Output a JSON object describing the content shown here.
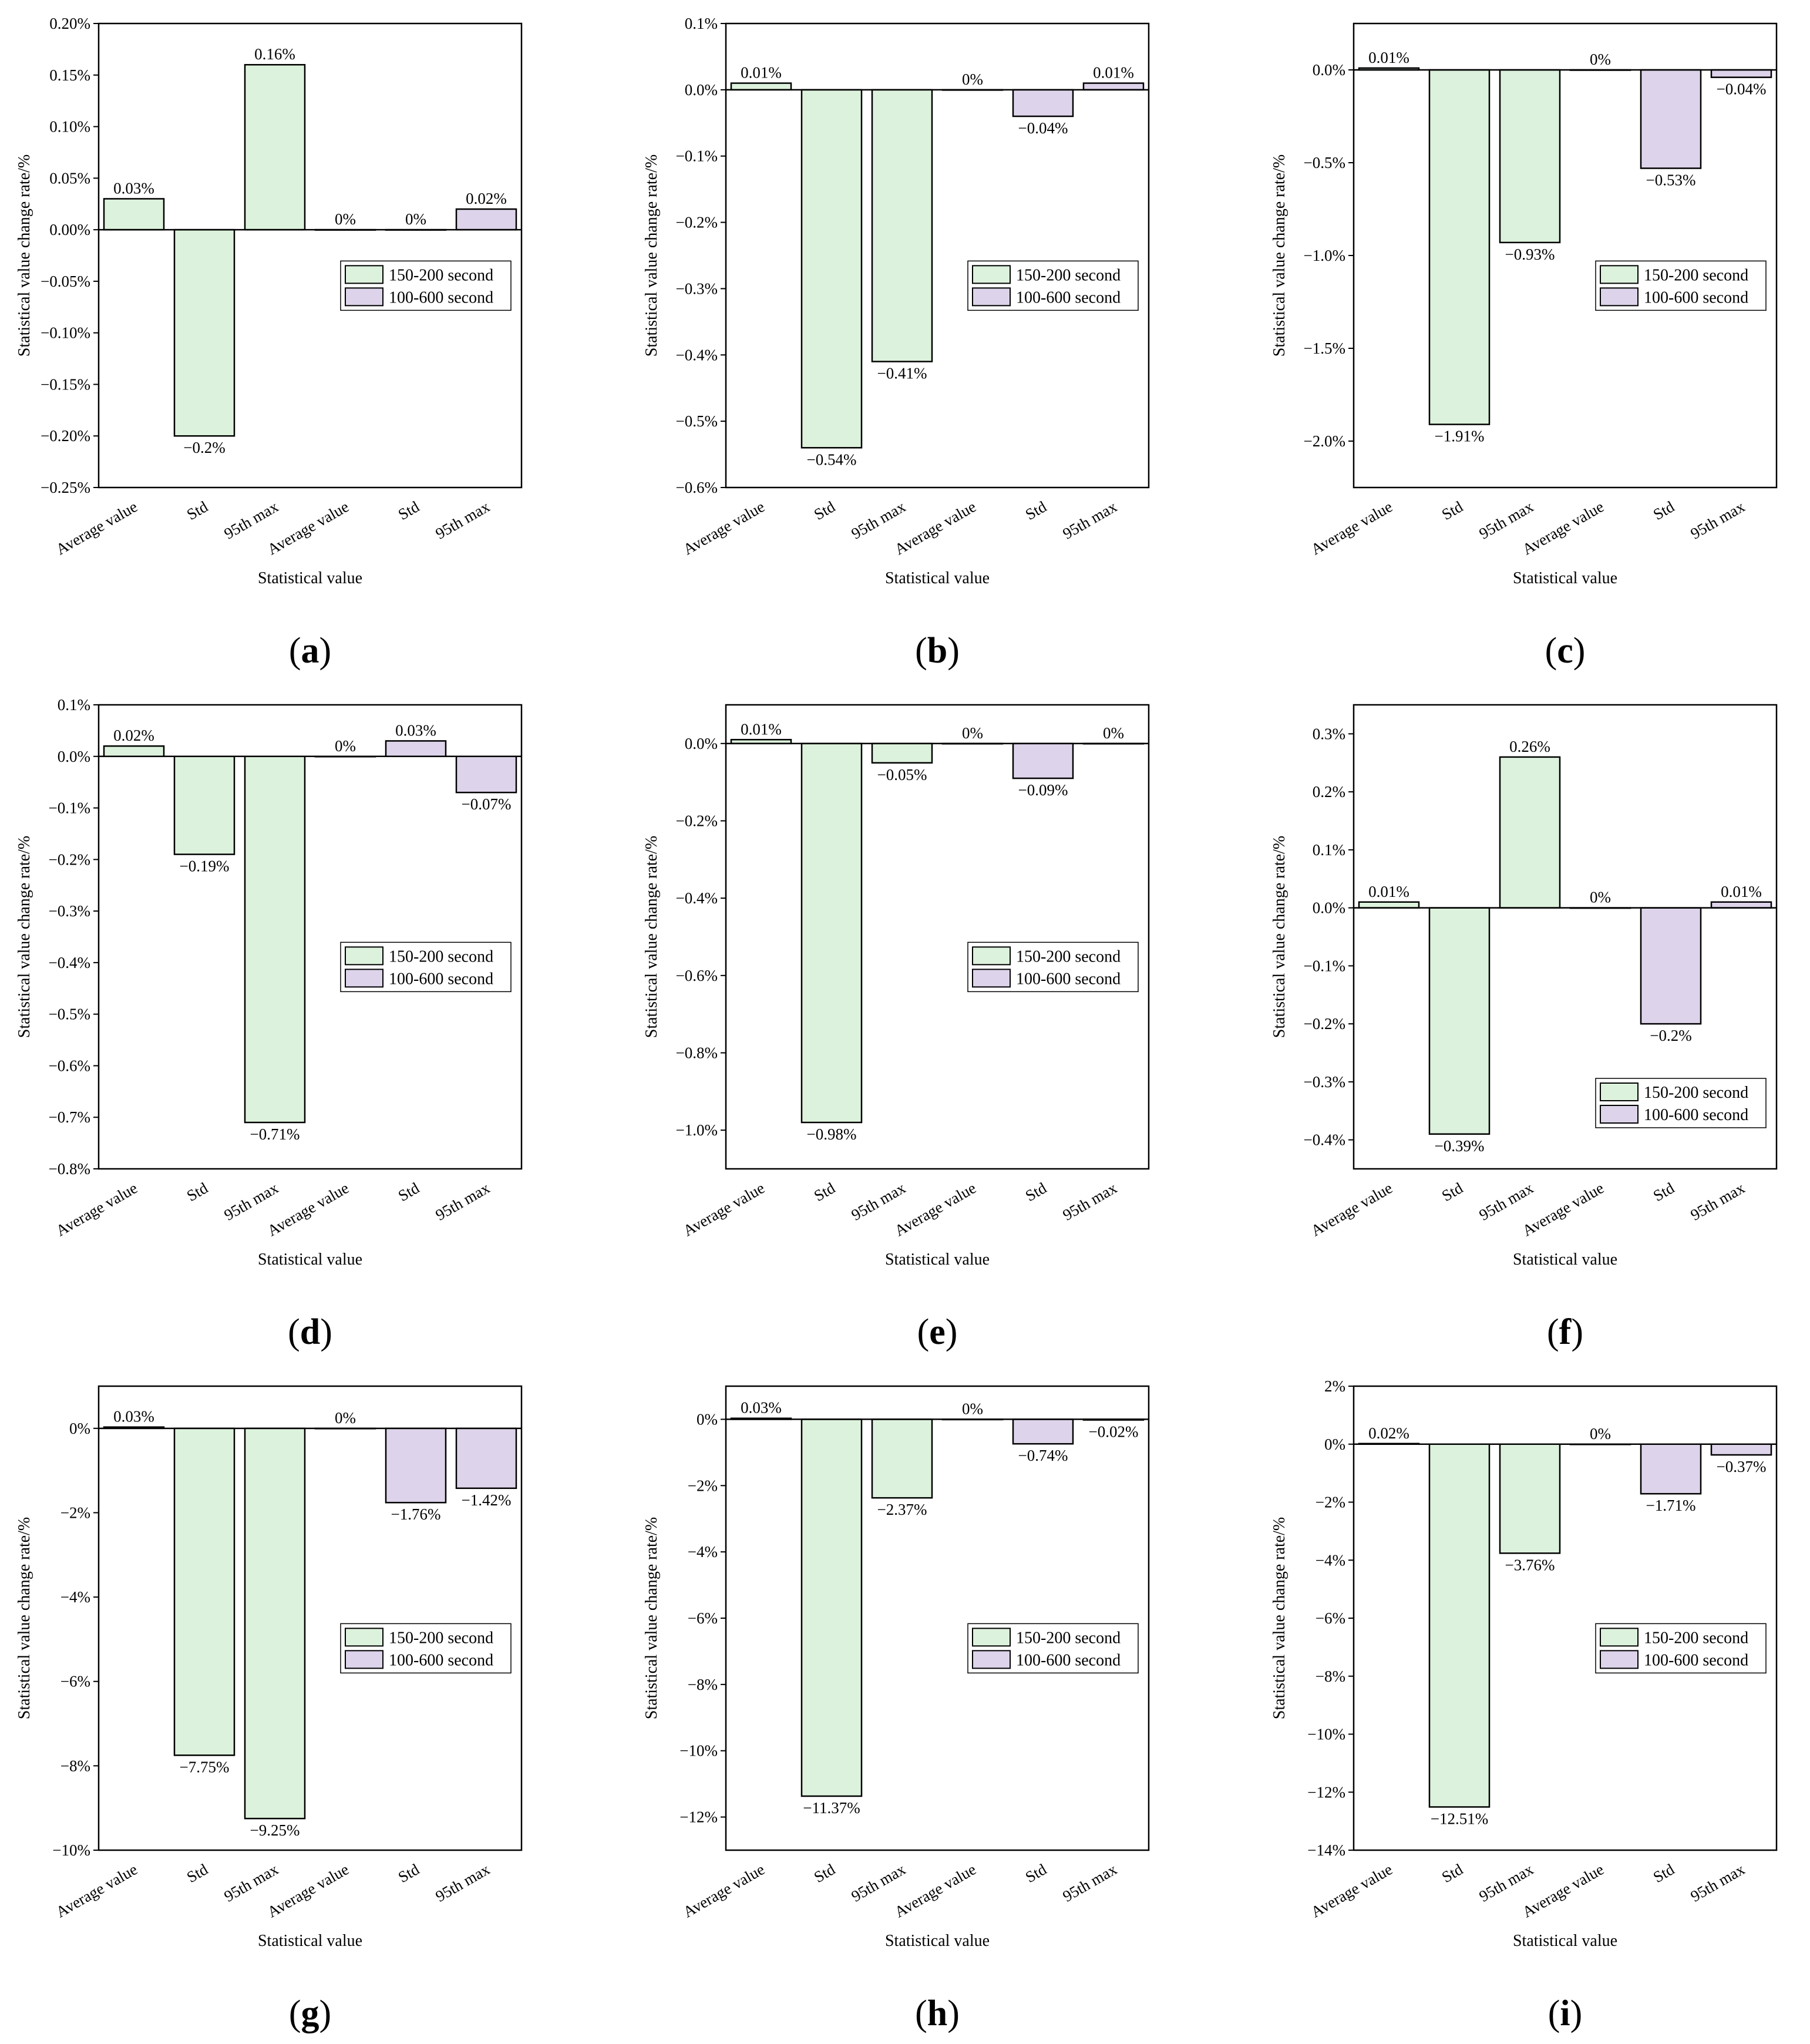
{
  "figure": {
    "legend": [
      "150-200 second",
      "100-600 second"
    ],
    "colors": {
      "green": "#dcf2dc",
      "purple": "#ddd3ea",
      "stroke": "#000000"
    }
  },
  "chart_data": [
    {
      "panel": "a",
      "type": "bar",
      "xlabel": "Statistical value",
      "ylabel": "Statistical value change rate/%",
      "categories": [
        "Average value",
        "Std",
        "95th max",
        "Average value",
        "Std",
        "95th max"
      ],
      "groups": [
        "150-200 second",
        "150-200 second",
        "150-200 second",
        "100-600 second",
        "100-600 second",
        "100-600 second"
      ],
      "values": [
        0.03,
        -0.2,
        0.16,
        0,
        0,
        0.02
      ],
      "labels": [
        "0.03%",
        "−0.2%",
        "0.16%",
        "0%",
        "0%",
        "0.02%"
      ],
      "ylim": [
        -0.25,
        0.2
      ],
      "yticks": [
        0.2,
        0.15,
        0.1,
        0.05,
        0,
        -0.05,
        -0.1,
        -0.15,
        -0.2,
        -0.25
      ],
      "yticklabels": [
        "0.20%",
        "0.15%",
        "0.10%",
        "0.05%",
        "0.00%",
        "−0.05%",
        "−0.10%",
        "−0.15%",
        "−0.20%",
        "−0.25%"
      ],
      "legend": "center-right"
    },
    {
      "panel": "b",
      "type": "bar",
      "xlabel": "Statistical value",
      "ylabel": "Statistical value change rate/%",
      "categories": [
        "Average value",
        "Std",
        "95th max",
        "Average value",
        "Std",
        "95th max"
      ],
      "groups": [
        "150-200 second",
        "150-200 second",
        "150-200 second",
        "100-600 second",
        "100-600 second",
        "100-600 second"
      ],
      "values": [
        0.01,
        -0.54,
        -0.41,
        0,
        -0.04,
        0.01
      ],
      "labels": [
        "0.01%",
        "−0.54%",
        "−0.41%",
        "0%",
        "−0.04%",
        "0.01%"
      ],
      "ylim": [
        -0.6,
        0.1
      ],
      "yticks": [
        0.1,
        0,
        -0.1,
        -0.2,
        -0.3,
        -0.4,
        -0.5,
        -0.6
      ],
      "yticklabels": [
        "0.1%",
        "0.0%",
        "−0.1%",
        "−0.2%",
        "−0.3%",
        "−0.4%",
        "−0.5%",
        "−0.6%"
      ],
      "legend": "center-right"
    },
    {
      "panel": "c",
      "type": "bar",
      "xlabel": "Statistical value",
      "ylabel": "Statistical value change rate/%",
      "categories": [
        "Average value",
        "Std",
        "95th max",
        "Average value",
        "Std",
        "95th max"
      ],
      "groups": [
        "150-200 second",
        "150-200 second",
        "150-200 second",
        "100-600 second",
        "100-600 second",
        "100-600 second"
      ],
      "values": [
        0.01,
        -1.91,
        -0.93,
        0,
        -0.53,
        -0.04
      ],
      "labels": [
        "0.01%",
        "−1.91%",
        "−0.93%",
        "0%",
        "−0.53%",
        "−0.04%"
      ],
      "ylim": [
        -2.25,
        0.25
      ],
      "yticks": [
        0,
        -0.5,
        -1.0,
        -1.5,
        -2.0
      ],
      "yticklabels": [
        "0.0%",
        "−0.5%",
        "−1.0%",
        "−1.5%",
        "−2.0%"
      ],
      "legend": "center-right"
    },
    {
      "panel": "d",
      "type": "bar",
      "xlabel": "Statistical value",
      "ylabel": "Statistical value change rate/%",
      "categories": [
        "Average value",
        "Std",
        "95th max",
        "Average value",
        "Std",
        "95th max"
      ],
      "groups": [
        "150-200 second",
        "150-200 second",
        "150-200 second",
        "100-600 second",
        "100-600 second",
        "100-600 second"
      ],
      "values": [
        0.02,
        -0.19,
        -0.71,
        0,
        0.03,
        -0.07
      ],
      "labels": [
        "0.02%",
        "−0.19%",
        "−0.71%",
        "0%",
        "0.03%",
        "−0.07%"
      ],
      "ylim": [
        -0.8,
        0.1
      ],
      "yticks": [
        0.1,
        0,
        -0.1,
        -0.2,
        -0.3,
        -0.4,
        -0.5,
        -0.6,
        -0.7,
        -0.8
      ],
      "yticklabels": [
        "0.1%",
        "0.0%",
        "−0.1%",
        "−0.2%",
        "−0.3%",
        "−0.4%",
        "−0.5%",
        "−0.6%",
        "−0.7%",
        "−0.8%"
      ],
      "legend": "center-right"
    },
    {
      "panel": "e",
      "type": "bar",
      "xlabel": "Statistical value",
      "ylabel": "Statistical value change rate/%",
      "categories": [
        "Average value",
        "Std",
        "95th max",
        "Average value",
        "Std",
        "95th max"
      ],
      "groups": [
        "150-200 second",
        "150-200 second",
        "150-200 second",
        "100-600 second",
        "100-600 second",
        "100-600 second"
      ],
      "values": [
        0.01,
        -0.98,
        -0.05,
        0,
        -0.09,
        0
      ],
      "labels": [
        "0.01%",
        "−0.98%",
        "−0.05%",
        "0%",
        "−0.09%",
        "0%"
      ],
      "ylim": [
        -1.1,
        0.1
      ],
      "yticks": [
        0,
        -0.2,
        -0.4,
        -0.6,
        -0.8,
        -1.0
      ],
      "yticklabels": [
        "0.0%",
        "−0.2%",
        "−0.4%",
        "−0.6%",
        "−0.8%",
        "−1.0%"
      ],
      "legend": "center-right"
    },
    {
      "panel": "f",
      "type": "bar",
      "xlabel": "Statistical value",
      "ylabel": "Statistical value change rate/%",
      "categories": [
        "Average value",
        "Std",
        "95th max",
        "Average value",
        "Std",
        "95th max"
      ],
      "groups": [
        "150-200 second",
        "150-200 second",
        "150-200 second",
        "100-600 second",
        "100-600 second",
        "100-600 second"
      ],
      "values": [
        0.01,
        -0.39,
        0.26,
        0,
        -0.2,
        0.01
      ],
      "labels": [
        "0.01%",
        "−0.39%",
        "0.26%",
        "0%",
        "−0.2%",
        "0.01%"
      ],
      "ylim": [
        -0.45,
        0.35
      ],
      "yticks": [
        0.3,
        0.2,
        0.1,
        0,
        -0.1,
        -0.2,
        -0.3,
        -0.4
      ],
      "yticklabels": [
        "0.3%",
        "0.2%",
        "0.1%",
        "0.0%",
        "−0.1%",
        "−0.2%",
        "−0.3%",
        "−0.4%"
      ],
      "legend": "bottom-right"
    },
    {
      "panel": "g",
      "type": "bar",
      "xlabel": "Statistical value",
      "ylabel": "Statistical value change rate/%",
      "categories": [
        "Average value",
        "Std",
        "95th max",
        "Average value",
        "Std",
        "95th max"
      ],
      "groups": [
        "150-200 second",
        "150-200 second",
        "150-200 second",
        "100-600 second",
        "100-600 second",
        "100-600 second"
      ],
      "values": [
        0.03,
        -7.75,
        -9.25,
        0,
        -1.76,
        -1.42
      ],
      "labels": [
        "0.03%",
        "−7.75%",
        "−9.25%",
        "0%",
        "−1.76%",
        "−1.42%"
      ],
      "ylim": [
        -10,
        1
      ],
      "yticks": [
        0,
        -2,
        -4,
        -6,
        -8,
        -10
      ],
      "yticklabels": [
        "0%",
        "−2%",
        "−4%",
        "−6%",
        "−8%",
        "−10%"
      ],
      "legend": "center-right"
    },
    {
      "panel": "h",
      "type": "bar",
      "xlabel": "Statistical value",
      "ylabel": "Statistical value change rate/%",
      "categories": [
        "Average value",
        "Std",
        "95th max",
        "Average value",
        "Std",
        "95th max"
      ],
      "groups": [
        "150-200 second",
        "150-200 second",
        "150-200 second",
        "100-600 second",
        "100-600 second",
        "100-600 second"
      ],
      "values": [
        0.03,
        -11.37,
        -2.37,
        0,
        -0.74,
        -0.02
      ],
      "labels": [
        "0.03%",
        "−11.37%",
        "−2.37%",
        "0%",
        "−0.74%",
        "−0.02%"
      ],
      "ylim": [
        -13,
        1
      ],
      "yticks": [
        0,
        -2,
        -4,
        -6,
        -8,
        -10,
        -12
      ],
      "yticklabels": [
        "0%",
        "−2%",
        "−4%",
        "−6%",
        "−8%",
        "−10%",
        "−12%"
      ],
      "legend": "center-right"
    },
    {
      "panel": "i",
      "type": "bar",
      "xlabel": "Statistical value",
      "ylabel": "Statistical value change rate/%",
      "categories": [
        "Average value",
        "Std",
        "95th max",
        "Average value",
        "Std",
        "95th max"
      ],
      "groups": [
        "150-200 second",
        "150-200 second",
        "150-200 second",
        "100-600 second",
        "100-600 second",
        "100-600 second"
      ],
      "values": [
        0.02,
        -12.51,
        -3.76,
        0,
        -1.71,
        -0.37
      ],
      "labels": [
        "0.02%",
        "−12.51%",
        "−3.76%",
        "0%",
        "−1.71%",
        "−0.37%"
      ],
      "ylim": [
        -14,
        2
      ],
      "yticks": [
        2,
        0,
        -2,
        -4,
        -6,
        -8,
        -10,
        -12,
        -14
      ],
      "yticklabels": [
        "2%",
        "0%",
        "−2%",
        "−4%",
        "−6%",
        "−8%",
        "−10%",
        "−12%",
        "−14%"
      ],
      "legend": "center-right"
    }
  ]
}
